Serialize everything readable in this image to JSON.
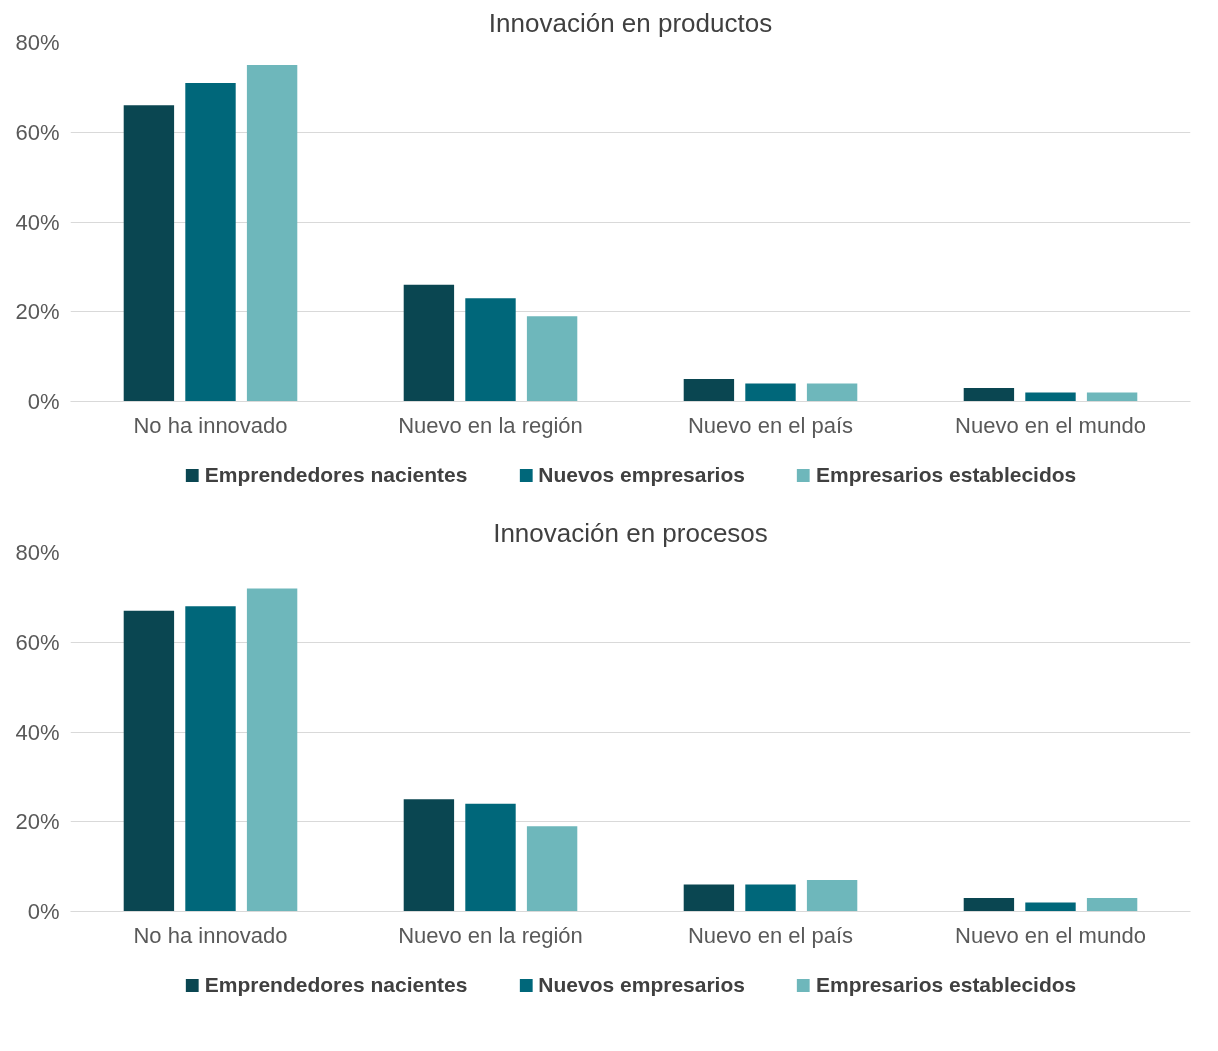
{
  "chart_data": [
    {
      "type": "bar",
      "title": "Innovación en productos",
      "categories": [
        "No ha innovado",
        "Nuevo en la región",
        "Nuevo en el país",
        "Nuevo en el mundo"
      ],
      "series": [
        {
          "name": "Emprendedores nacientes",
          "color": "#0a4651",
          "values": [
            66,
            26,
            5,
            3
          ]
        },
        {
          "name": "Nuevos empresarios",
          "color": "#00677a",
          "values": [
            71,
            23,
            4,
            2
          ]
        },
        {
          "name": "Empresarios establecidos",
          "color": "#6eb7bb",
          "values": [
            75,
            19,
            4,
            2
          ]
        }
      ],
      "ylim": [
        0,
        80
      ],
      "yticks": [
        {
          "value": 0,
          "label": "0%"
        },
        {
          "value": 20,
          "label": "20%"
        },
        {
          "value": 40,
          "label": "40%"
        },
        {
          "value": 60,
          "label": "60%"
        },
        {
          "value": 80,
          "label": "80%"
        }
      ],
      "grid": "y",
      "legend": "bottom"
    },
    {
      "type": "bar",
      "title": "Innovación en procesos",
      "categories": [
        "No ha innovado",
        "Nuevo en la región",
        "Nuevo en el país",
        "Nuevo en el mundo"
      ],
      "series": [
        {
          "name": "Emprendedores nacientes",
          "color": "#0a4651",
          "values": [
            67,
            25,
            6,
            3
          ]
        },
        {
          "name": "Nuevos empresarios",
          "color": "#00677a",
          "values": [
            68,
            24,
            6,
            2
          ]
        },
        {
          "name": "Empresarios establecidos",
          "color": "#6eb7bb",
          "values": [
            72,
            19,
            7,
            3
          ]
        }
      ],
      "ylim": [
        0,
        80
      ],
      "yticks": [
        {
          "value": 0,
          "label": "0%"
        },
        {
          "value": 20,
          "label": "20%"
        },
        {
          "value": 40,
          "label": "40%"
        },
        {
          "value": 60,
          "label": "60%"
        },
        {
          "value": 80,
          "label": "80%"
        }
      ],
      "grid": "y",
      "legend": "bottom"
    }
  ]
}
